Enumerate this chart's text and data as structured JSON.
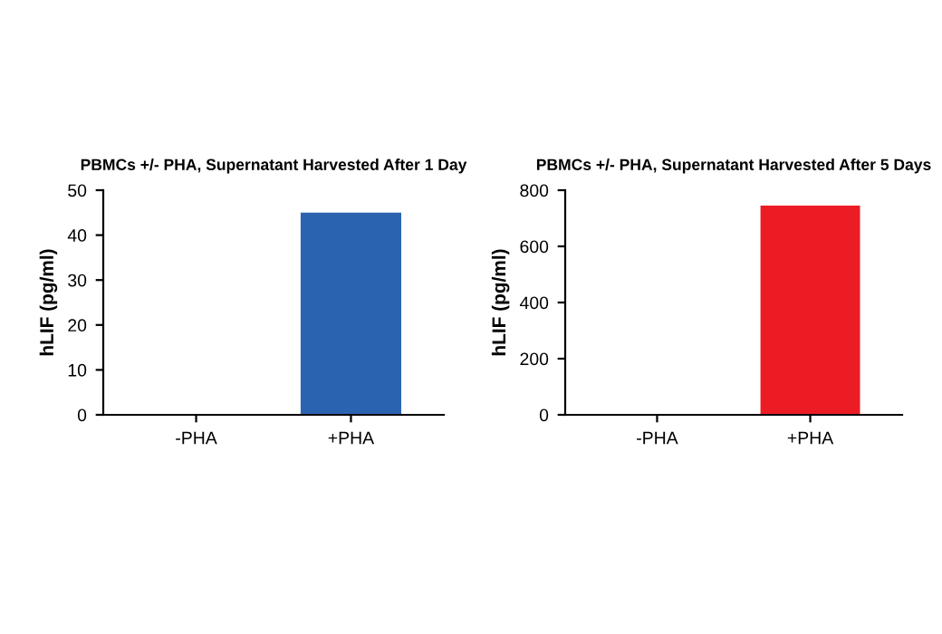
{
  "chart_data": [
    {
      "type": "bar",
      "title": "PBMCs +/- PHA, Supernatant Harvested After 1 Day",
      "ylabel": "hLIF (pg/ml)",
      "categories": [
        "-PHA",
        "+PHA"
      ],
      "values": [
        0,
        45
      ],
      "color": "#2a64b0",
      "ylim": [
        0,
        50
      ],
      "yticks": [
        0,
        10,
        20,
        30,
        40,
        50
      ],
      "grid": false,
      "legend": false
    },
    {
      "type": "bar",
      "title": "PBMCs +/- PHA, Supernatant Harvested After 5 Days",
      "ylabel": "hLIF (pg/ml)",
      "categories": [
        "-PHA",
        "+PHA"
      ],
      "values": [
        0,
        745
      ],
      "color": "#ec1c24",
      "ylim": [
        0,
        800
      ],
      "yticks": [
        0,
        200,
        400,
        600,
        800
      ],
      "grid": false,
      "legend": false
    }
  ]
}
